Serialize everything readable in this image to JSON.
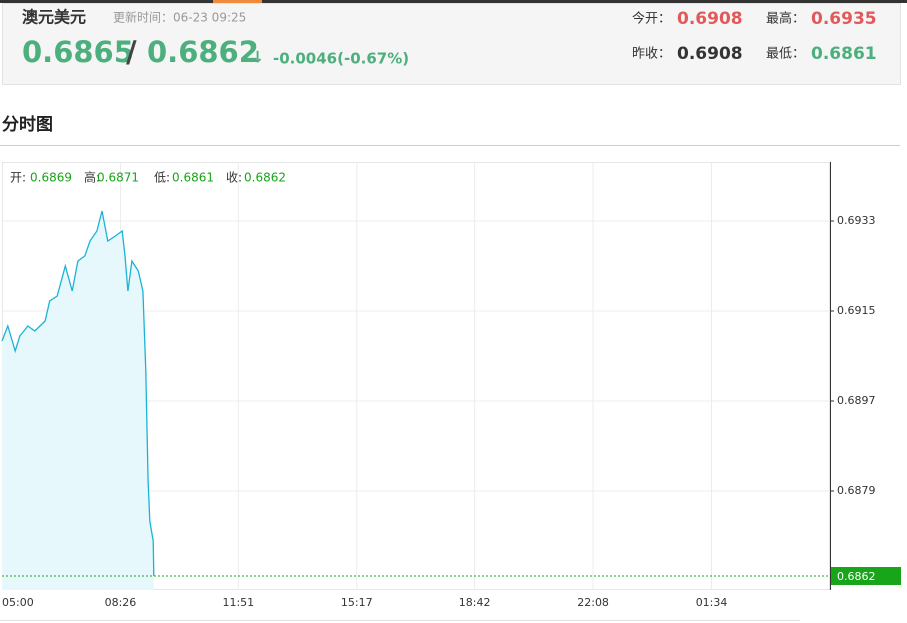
{
  "header": {
    "title": "澳元美元",
    "update_time": "更新时间：06-23 09:25",
    "bid": "0.6865",
    "separator": "/",
    "ask": "0.6862",
    "arrow": "↓",
    "change": "-0.0046(-0.67%)",
    "stats": [
      {
        "label": "今开：",
        "value": "0.6908"
      },
      {
        "label": "最高：",
        "value": "0.6935"
      },
      {
        "label": "昨收：",
        "value": "0.6908"
      },
      {
        "label": "最低：",
        "value": "0.6861"
      }
    ]
  },
  "section_title": "分时图",
  "ohlc": [
    {
      "label": "开:",
      "value": "0.6869"
    },
    {
      "label": "高:",
      "value": "0.6871"
    },
    {
      "label": "低:",
      "value": "0.6861"
    },
    {
      "label": "收:",
      "value": "0.6862"
    }
  ],
  "chart_data": {
    "type": "line",
    "x": [
      0,
      10,
      23,
      31,
      45,
      57,
      75,
      83,
      96,
      110,
      122,
      132,
      144,
      153,
      165,
      174,
      184,
      197,
      209,
      214,
      219,
      226,
      237,
      245,
      250,
      254,
      257,
      263,
      264
    ],
    "series": [
      {
        "color": "#1ab3d6",
        "values": [
          0.6909,
          0.6912,
          0.6907,
          0.691,
          0.6912,
          0.6911,
          0.6913,
          0.6917,
          0.6918,
          0.6924,
          0.6919,
          0.6925,
          0.6926,
          0.6929,
          0.6931,
          0.6935,
          0.6929,
          0.693,
          0.6931,
          0.6926,
          0.6919,
          0.6925,
          0.6923,
          0.6919,
          0.6903,
          0.6881,
          0.6873,
          0.6869,
          0.6862
        ]
      }
    ],
    "xlim": [
      0,
      1440
    ],
    "xticks": [
      {
        "value": 0,
        "label": "05:00"
      },
      {
        "value": 206,
        "label": "08:26"
      },
      {
        "value": 411,
        "label": "11:51"
      },
      {
        "value": 617,
        "label": "15:17"
      },
      {
        "value": 822,
        "label": "18:42"
      },
      {
        "value": 1028,
        "label": "22:08"
      },
      {
        "value": 1234,
        "label": "01:34"
      }
    ],
    "ylim": [
      0.68592,
      0.69448
    ],
    "yticks": [
      {
        "value": 0.6879,
        "label": "0.6879"
      },
      {
        "value": 0.6897,
        "label": "0.6897"
      },
      {
        "value": 0.6915,
        "label": "0.6915"
      },
      {
        "value": 0.6933,
        "label": "0.6933"
      }
    ],
    "current": {
      "value": 0.6862,
      "label": "0.6862"
    },
    "current_color": "#19a519",
    "grid": true
  }
}
